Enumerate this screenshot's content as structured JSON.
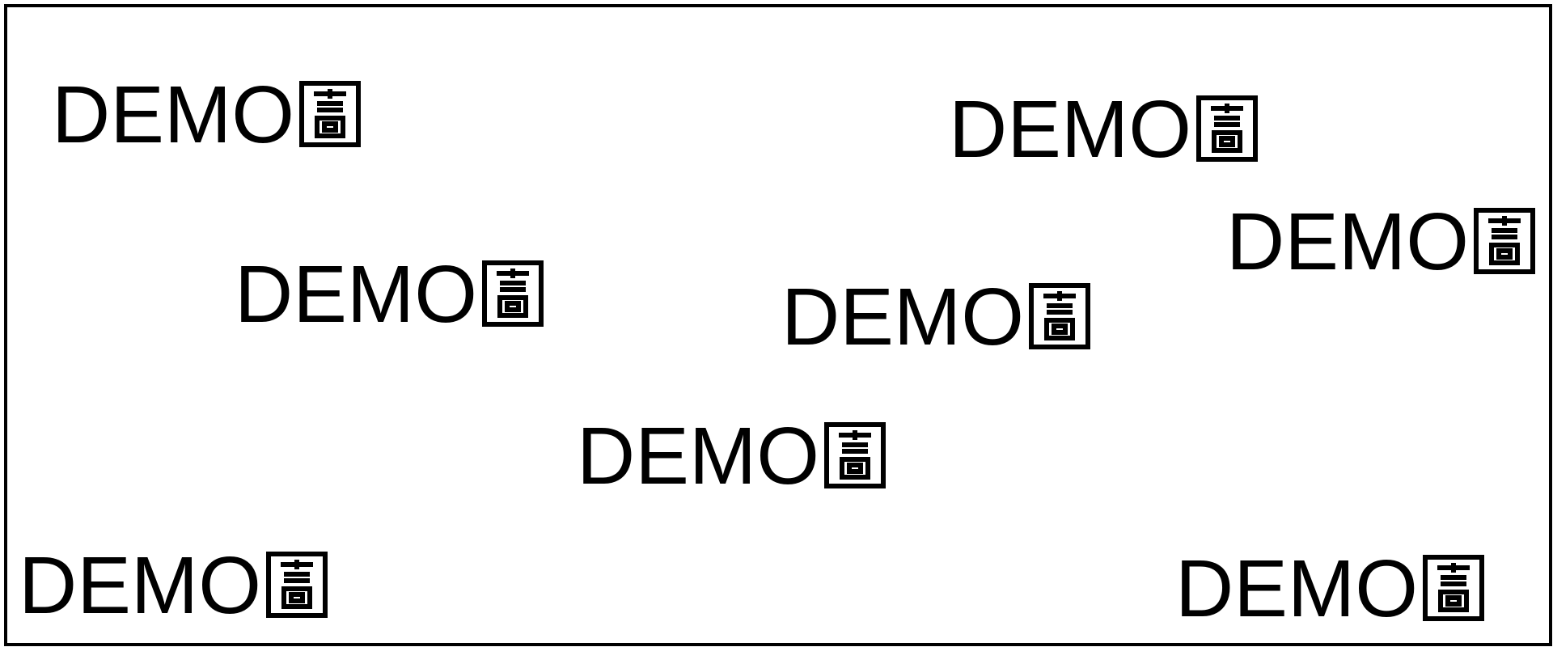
{
  "watermark": {
    "text_latin": "DEMO",
    "text_cjk": "圖",
    "items": [
      {
        "text": "DEMO"
      },
      {
        "text": "DEMO"
      },
      {
        "text": "DEMO"
      },
      {
        "text": "DEMO"
      },
      {
        "text": "DEMO"
      },
      {
        "text": "DEMO"
      },
      {
        "text": "DEMO"
      },
      {
        "text": "DEMO"
      }
    ]
  },
  "colors": {
    "ink": "#000000",
    "background": "#ffffff",
    "border": "#000000"
  }
}
